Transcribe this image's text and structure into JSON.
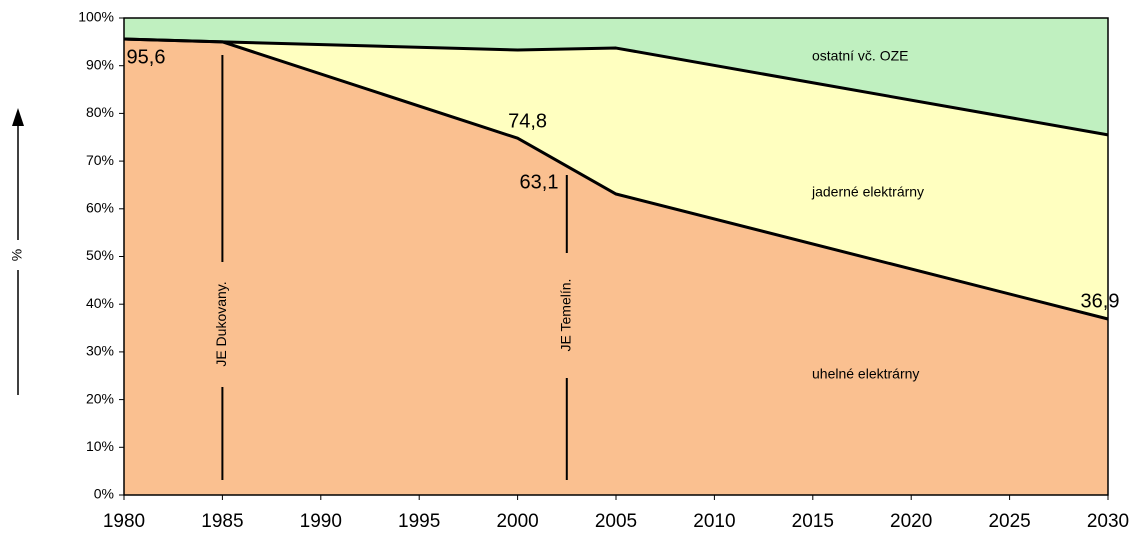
{
  "chart_data": {
    "type": "stacked_area",
    "x": [
      1980,
      1985,
      2000,
      2005,
      2030
    ],
    "series": [
      {
        "name": "uhelné elektrárny",
        "color": "#fac090",
        "values": [
          95.6,
          95,
          74.8,
          63.1,
          36.9
        ],
        "value_labels": [
          "95,6",
          null,
          "74,8",
          "63,1",
          "36,9"
        ]
      },
      {
        "name": "jaderné elektrárny",
        "color": "#ffffc0",
        "values": [
          0,
          0,
          18.5,
          30.6,
          38.6
        ]
      },
      {
        "name": "ostatní vč. OZE",
        "color": "#c0f0c0",
        "values": [
          4.4,
          5,
          6.7,
          6.3,
          24.5
        ]
      }
    ],
    "ylabel": "%",
    "xlim": [
      1980,
      2030
    ],
    "xticks": [
      1980,
      1985,
      1990,
      1995,
      2000,
      2005,
      2010,
      2015,
      2020,
      2025,
      2030
    ],
    "ylim": [
      0,
      100
    ],
    "yticks": [
      {
        "value": 0,
        "label": "0%"
      },
      {
        "value": 10,
        "label": "10%"
      },
      {
        "value": 20,
        "label": "20%"
      },
      {
        "value": 30,
        "label": "30%"
      },
      {
        "value": 40,
        "label": "40%"
      },
      {
        "value": 50,
        "label": "50%"
      },
      {
        "value": 60,
        "label": "60%"
      },
      {
        "value": 70,
        "label": "70%"
      },
      {
        "value": 80,
        "label": "80%"
      },
      {
        "value": 90,
        "label": "90%"
      },
      {
        "value": 100,
        "label": "100%"
      }
    ],
    "annotations": [
      {
        "text": "JE Dukovany.",
        "x": 1985
      },
      {
        "text": "JE Temelín.",
        "x": 2002.5
      }
    ],
    "grid": false
  }
}
